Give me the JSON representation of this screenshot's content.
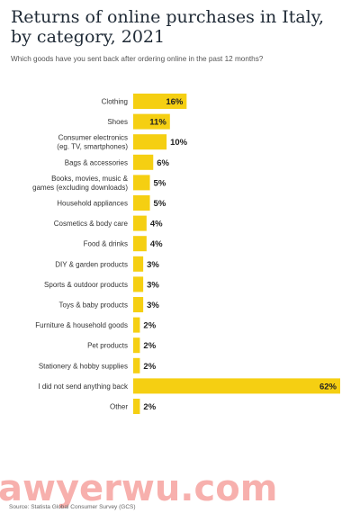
{
  "title_lines": [
    "Returns of online purchases in Italy,",
    "by category, 2021"
  ],
  "subtitle": "Which goods have you sent back after ordering online in the past 12 months?",
  "source": "Source: Statista Global Consumer Survey (GCS)",
  "watermark": "awyerwu.com",
  "colors": {
    "bar": "#f5cf12",
    "text": "#333333",
    "title": "#1f2a36",
    "watermark": "#f7b0ad"
  },
  "chart_data": {
    "type": "bar",
    "orientation": "horizontal",
    "title": "Returns of online purchases in Italy, by category, 2021",
    "categories": [
      [
        "Clothing"
      ],
      [
        "Shoes"
      ],
      [
        "Consumer electronics",
        "(eg. TV, smartphones)"
      ],
      [
        "Bags & accessories"
      ],
      [
        "Books, movies, music &",
        "games (excluding downloads)"
      ],
      [
        "Household appliances"
      ],
      [
        "Cosmetics & body care"
      ],
      [
        "Food & drinks"
      ],
      [
        "DIY & garden products"
      ],
      [
        "Sports & outdoor products"
      ],
      [
        "Toys & baby products"
      ],
      [
        "Furniture & household goods"
      ],
      [
        "Pet products"
      ],
      [
        "Stationery & hobby supplies"
      ],
      [
        "I did not send anything back"
      ],
      [
        "Other"
      ]
    ],
    "values": [
      16,
      11,
      10,
      6,
      5,
      5,
      4,
      4,
      3,
      3,
      3,
      2,
      2,
      2,
      62,
      2
    ],
    "value_labels": [
      "16%",
      "11%",
      "10%",
      "6%",
      "5%",
      "5%",
      "4%",
      "4%",
      "3%",
      "3%",
      "3%",
      "2%",
      "2%",
      "2%",
      "62%",
      "2%"
    ],
    "unit": "%",
    "xlim": [
      0,
      62
    ],
    "grid": false
  }
}
